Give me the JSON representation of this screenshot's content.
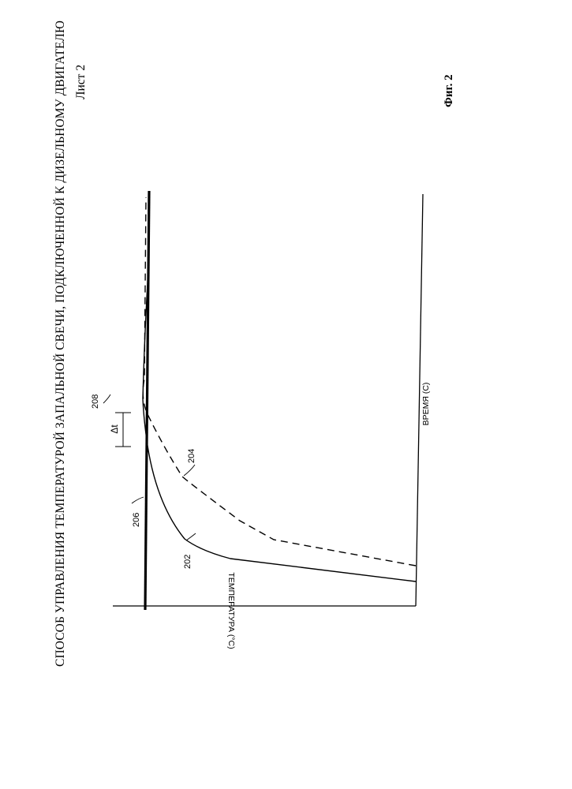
{
  "header": {
    "title": "СПОСОБ УПРАВЛЕНИЯ ТЕМПЕРАТУРОЙ ЗАПАЛЬНОЙ СВЕЧИ, ПОДКЛЮЧЕННОЙ К ДИЗЕЛЬНОМУ ДВИГАТЕЛЮ",
    "sheet": "Лист 2"
  },
  "figure": {
    "caption": "Фиг. 2",
    "y_axis_label": "ТЕМПЕРАТУРА (°C)",
    "x_axis_label": "ВРЕМЯ (С)",
    "references": {
      "curve_solid": "202",
      "curve_dashed": "204",
      "target_line": "206",
      "crossing_point": "208",
      "delta_t": "Δt"
    }
  },
  "colors": {
    "ink": "#000000",
    "paper": "#ffffff"
  }
}
